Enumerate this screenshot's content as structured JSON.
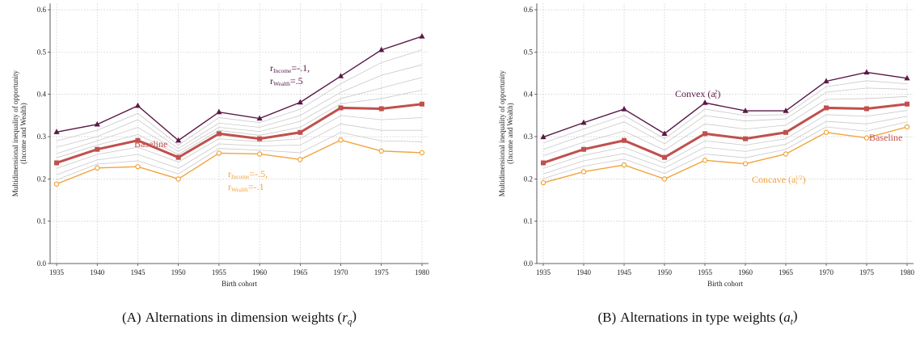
{
  "chart_data": [
    {
      "type": "line",
      "xlabel": "Birth cohort",
      "ylabel": [
        "Multidimensional inequality of opportunity",
        "(Income and Wealth)"
      ],
      "x": [
        1935,
        1940,
        1945,
        1950,
        1955,
        1960,
        1965,
        1970,
        1975,
        1980
      ],
      "xlim": [
        1934.2,
        1980.8
      ],
      "ylim": [
        0,
        0.615
      ],
      "xticks": [
        1935,
        1940,
        1945,
        1950,
        1955,
        1960,
        1965,
        1970,
        1975,
        1980
      ],
      "yticks": [
        {
          "value": 0,
          "label": "0.0"
        },
        0.1,
        0.2,
        0.3,
        0.4,
        0.5,
        0.6
      ],
      "grid": true,
      "series": [
        {
          "color": "#c9c9c9",
          "values": [
            0.29,
            0.315,
            0.355,
            0.28,
            0.345,
            0.333,
            0.365,
            0.425,
            0.475,
            0.505
          ]
        },
        {
          "color": "#c9c9c9",
          "values": [
            0.275,
            0.3,
            0.34,
            0.272,
            0.332,
            0.322,
            0.35,
            0.405,
            0.445,
            0.47
          ]
        },
        {
          "color": "#c9c9c9",
          "values": [
            0.26,
            0.29,
            0.322,
            0.265,
            0.322,
            0.312,
            0.336,
            0.39,
            0.415,
            0.44
          ]
        },
        {
          "color": "#c9c9c9",
          "values": [
            0.25,
            0.28,
            0.305,
            0.258,
            0.315,
            0.303,
            0.322,
            0.378,
            0.39,
            0.41
          ]
        },
        {
          "color": "#c9c9c9",
          "values": [
            0.225,
            0.258,
            0.275,
            0.24,
            0.295,
            0.288,
            0.295,
            0.35,
            0.34,
            0.345
          ]
        },
        {
          "color": "#c9c9c9",
          "values": [
            0.21,
            0.245,
            0.258,
            0.225,
            0.283,
            0.278,
            0.28,
            0.33,
            0.315,
            0.315
          ]
        },
        {
          "color": "#c9c9c9",
          "values": [
            0.198,
            0.235,
            0.243,
            0.212,
            0.272,
            0.268,
            0.262,
            0.31,
            0.29,
            0.288
          ]
        },
        {
          "color": "#5a1846",
          "marker": "triangle",
          "values": [
            0.311,
            0.329,
            0.373,
            0.291,
            0.358,
            0.343,
            0.381,
            0.443,
            0.505,
            0.537
          ]
        },
        {
          "color": "#f2a33a",
          "marker": "circle",
          "values": [
            0.188,
            0.226,
            0.229,
            0.2,
            0.261,
            0.259,
            0.246,
            0.292,
            0.266,
            0.262
          ]
        },
        {
          "color": "#c0504d",
          "marker": "square",
          "width": 3,
          "values": [
            0.238,
            0.27,
            0.291,
            0.251,
            0.307,
            0.295,
            0.31,
            0.368,
            0.366,
            0.377
          ]
        }
      ],
      "annotations": [
        {
          "color": "#c0504d",
          "lines": [
            [
              {
                "text": "Baseline"
              }
            ]
          ]
        },
        {
          "color": "#5a1846",
          "lines": [
            [
              {
                "text": "r"
              },
              {
                "sub": "Income"
              },
              {
                "text": "=-.1,"
              }
            ],
            [
              {
                "text": "r"
              },
              {
                "sub": "Wealth"
              },
              {
                "text": "=.5"
              }
            ]
          ]
        },
        {
          "color": "#f2a33a",
          "lines": [
            [
              {
                "text": "r"
              },
              {
                "sub": "Income"
              },
              {
                "text": "=-.5,"
              }
            ],
            [
              {
                "text": "r"
              },
              {
                "sub": "Wealth"
              },
              {
                "text": "=-.1"
              }
            ]
          ]
        }
      ],
      "caption": [
        {
          "text": "(A)"
        },
        {
          "text": "Alternations in dimension weights ("
        },
        {
          "italic": "r"
        },
        {
          "sub": "q"
        },
        {
          "text": ")"
        }
      ]
    },
    {
      "type": "line",
      "xlabel": "Birth cohort",
      "ylabel": [
        "Multidimensional inequality of opportunity",
        "(Income and Wealth)"
      ],
      "x": [
        1935,
        1940,
        1945,
        1950,
        1955,
        1960,
        1965,
        1970,
        1975,
        1980
      ],
      "xlim": [
        1934.2,
        1980.8
      ],
      "ylim": [
        0,
        0.615
      ],
      "xticks": [
        1935,
        1940,
        1945,
        1950,
        1955,
        1960,
        1965,
        1970,
        1975,
        1980
      ],
      "yticks": [
        {
          "value": 0,
          "label": "0.0"
        },
        0.1,
        0.2,
        0.3,
        0.4,
        0.5,
        0.6
      ],
      "grid": true,
      "series": [
        {
          "color": "#c9c9c9",
          "values": [
            0.285,
            0.318,
            0.35,
            0.295,
            0.365,
            0.35,
            0.352,
            0.418,
            0.432,
            0.425
          ]
        },
        {
          "color": "#c9c9c9",
          "values": [
            0.27,
            0.303,
            0.335,
            0.283,
            0.35,
            0.337,
            0.342,
            0.405,
            0.415,
            0.412
          ]
        },
        {
          "color": "#c9c9c9",
          "values": [
            0.255,
            0.287,
            0.313,
            0.268,
            0.33,
            0.318,
            0.327,
            0.388,
            0.39,
            0.395
          ]
        },
        {
          "color": "#c9c9c9",
          "values": [
            0.225,
            0.256,
            0.275,
            0.238,
            0.29,
            0.28,
            0.295,
            0.352,
            0.348,
            0.362
          ]
        },
        {
          "color": "#c9c9c9",
          "values": [
            0.212,
            0.243,
            0.26,
            0.226,
            0.275,
            0.265,
            0.282,
            0.336,
            0.33,
            0.348
          ]
        },
        {
          "color": "#c9c9c9",
          "values": [
            0.201,
            0.23,
            0.247,
            0.213,
            0.259,
            0.25,
            0.27,
            0.323,
            0.313,
            0.335
          ]
        },
        {
          "color": "#5a1846",
          "marker": "triangle",
          "values": [
            0.299,
            0.333,
            0.365,
            0.307,
            0.38,
            0.361,
            0.361,
            0.431,
            0.452,
            0.438
          ]
        },
        {
          "color": "#f2a33a",
          "marker": "circle",
          "values": [
            0.191,
            0.217,
            0.233,
            0.2,
            0.244,
            0.236,
            0.259,
            0.31,
            0.297,
            0.323
          ]
        },
        {
          "color": "#c0504d",
          "marker": "square",
          "width": 3,
          "values": [
            0.238,
            0.27,
            0.291,
            0.251,
            0.307,
            0.295,
            0.31,
            0.368,
            0.366,
            0.377
          ]
        }
      ],
      "annotations": [
        {
          "color": "#5a1846",
          "lines": [
            [
              {
                "text": "Convex (a"
              },
              {
                "sub": "i"
              },
              {
                "sup": "2"
              },
              {
                "text": ")"
              }
            ]
          ]
        },
        {
          "color": "#c0504d",
          "lines": [
            [
              {
                "text": "Baseline"
              }
            ]
          ]
        },
        {
          "color": "#f2a33a",
          "lines": [
            [
              {
                "text": "Concave (a"
              },
              {
                "sub": "i"
              },
              {
                "sup": "1/2"
              },
              {
                "text": ")"
              }
            ]
          ]
        }
      ],
      "caption": [
        {
          "text": "(B)"
        },
        {
          "text": "Alternations in type weights ("
        },
        {
          "italic": "a"
        },
        {
          "sub": "t"
        },
        {
          "text": ")"
        }
      ]
    }
  ]
}
